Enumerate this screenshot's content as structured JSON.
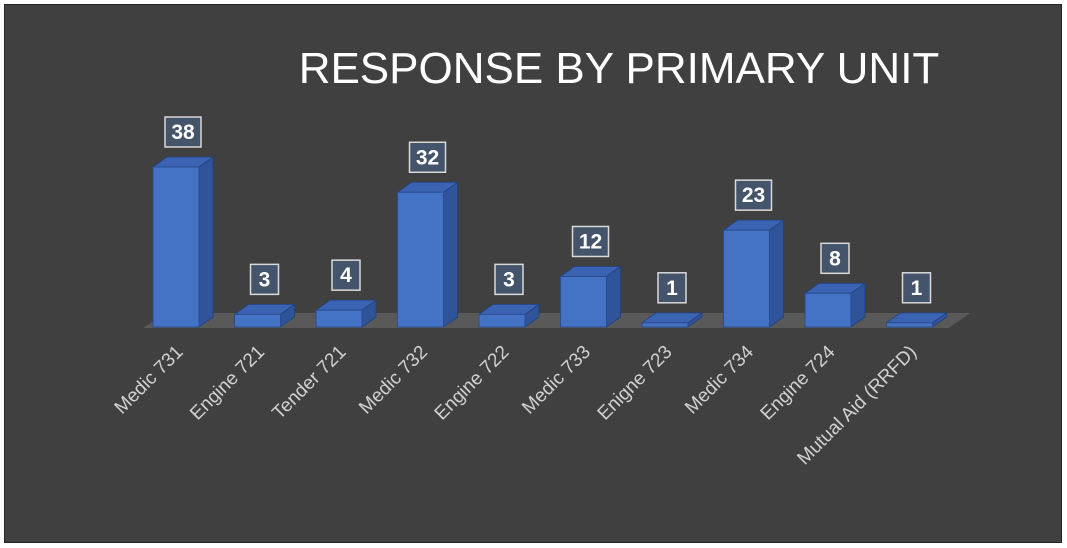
{
  "chart_data": {
    "type": "bar",
    "title": "RESPONSE BY PRIMARY UNIT",
    "categories": [
      "Medic 731",
      "Engine 721",
      "Tender 721",
      "Medic 732",
      "Engine 722",
      "Medic 733",
      "Enigne 723",
      "Medic 734",
      "Engine 724",
      "Mutual Aid (RRFD)"
    ],
    "values": [
      38,
      3,
      4,
      32,
      3,
      12,
      1,
      23,
      8,
      1
    ],
    "xlabel": "",
    "ylabel": "",
    "grid": false,
    "legend": "none",
    "style": "3d-column",
    "colors": {
      "background": "#404040",
      "bar_front": "#4472c4",
      "bar_side": "#2f549a",
      "bar_top": "#3a64b3",
      "floor": "#595959",
      "label_box_fill": "#44546a",
      "label_box_border": "#d9d9d9",
      "text": "#ffffff"
    }
  }
}
